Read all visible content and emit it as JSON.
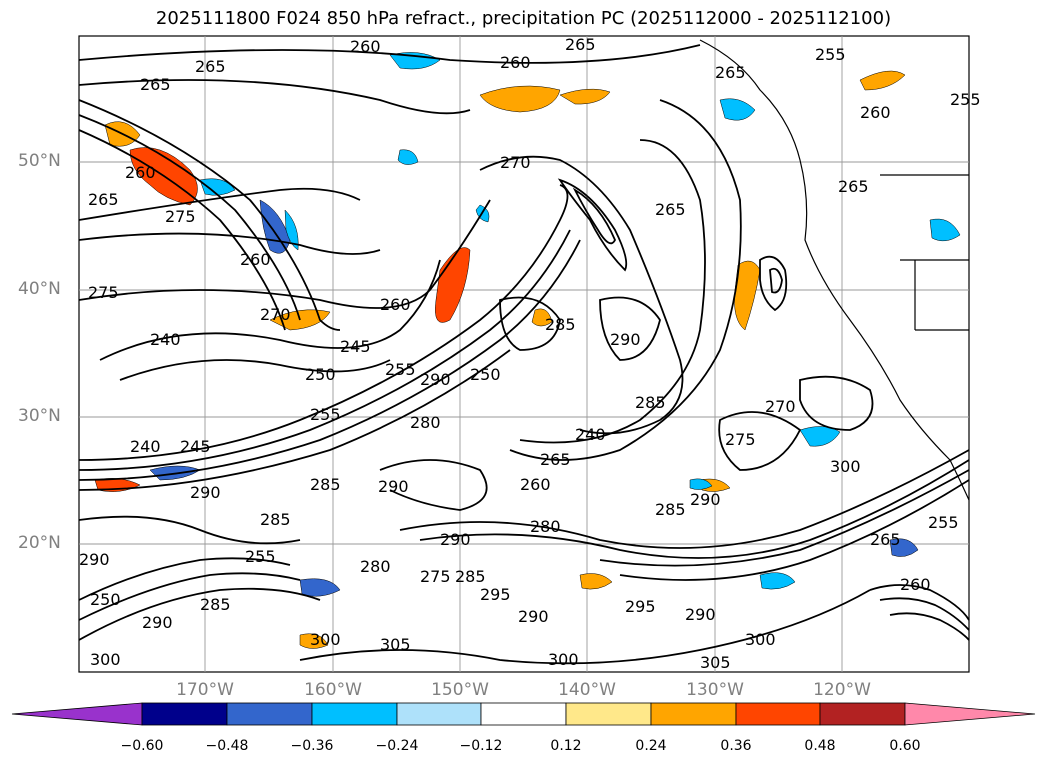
{
  "title": "2025111800 F024 850 hPa refract., precipitation PC (2025112000 - 2025112100)",
  "map": {
    "lat_labels": [
      "50°N",
      "40°N",
      "30°N",
      "20°N"
    ],
    "lon_labels": [
      "170°W",
      "160°W",
      "150°W",
      "140°W",
      "130°W",
      "120°W"
    ],
    "contour_labels": [
      "265",
      "265",
      "260",
      "260",
      "265",
      "265",
      "255",
      "260",
      "255",
      "260",
      "265",
      "265",
      "275",
      "270",
      "265",
      "260",
      "275",
      "240",
      "245",
      "250",
      "255",
      "260",
      "270",
      "285",
      "290",
      "290",
      "250",
      "240",
      "245",
      "255",
      "280",
      "290",
      "285",
      "290",
      "275",
      "265",
      "240",
      "260",
      "285",
      "290",
      "285",
      "280",
      "270",
      "255",
      "280",
      "250",
      "290",
      "285",
      "275",
      "300",
      "305",
      "295",
      "290",
      "300",
      "295",
      "300",
      "305",
      "300",
      "290",
      "290",
      "260",
      "255",
      "265",
      "285",
      "285",
      "290",
      "300"
    ],
    "colors": {
      "coast": "#000000",
      "grid": "#999999",
      "contour": "#000000"
    }
  },
  "colorbar": {
    "ticks": [
      "−0.60",
      "−0.48",
      "−0.36",
      "−0.24",
      "−0.12",
      "0.12",
      "0.24",
      "0.36",
      "0.48",
      "0.60"
    ],
    "colors": [
      "#9932cc",
      "#00008b",
      "#3366cc",
      "#00bfff",
      "#aee1fa",
      "#ffffff",
      "#ffe88a",
      "#ffa500",
      "#ff4500",
      "#b22222",
      "#ff88aa"
    ]
  }
}
